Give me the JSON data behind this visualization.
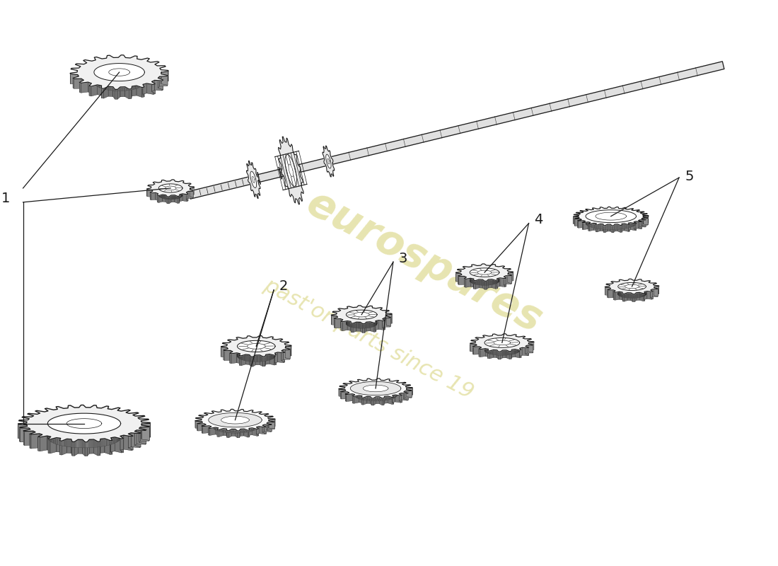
{
  "bg_color": "#ffffff",
  "line_color": "#1a1a1a",
  "gear_face_color": "#f0f0f0",
  "gear_side_color": "#a0a0a0",
  "gear_hub_color": "#e8e8e8",
  "watermark_color": "#d4cf70",
  "watermark_alpha": 0.55,
  "label_fontsize": 14,
  "figsize": [
    11.0,
    8.0
  ],
  "dpi": 100,
  "shaft_color": "#e0e0e0",
  "tooth_color": "#c8c8c8",
  "annotation_lw": 0.9
}
